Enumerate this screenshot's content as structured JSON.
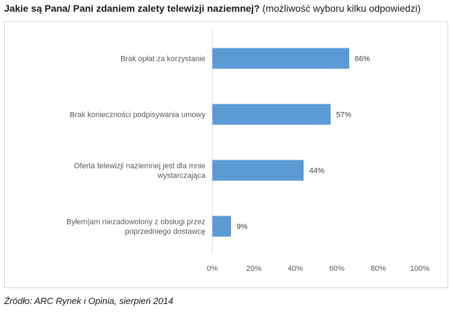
{
  "title": {
    "main": "Jakie są Pana/ Pani zdaniem zalety telewizji naziemnej?",
    "sub": "(możliwość wyboru kilku odpowiedzi)"
  },
  "source": "Źródło: ARC Rynek i Opinia, sierpień 2014",
  "chart_data": {
    "type": "bar",
    "orientation": "horizontal",
    "categories": [
      [
        "Brak opłat za korzystanie"
      ],
      [
        "Brak konieczności podpisywania umowy"
      ],
      [
        "Oferta telewizji naziemnej jest dla mnie",
        "wystarczająca"
      ],
      [
        "Byłem|am niezadowolony z obsługi przez",
        "poprzedniego dostawcę"
      ]
    ],
    "values": [
      66,
      57,
      44,
      9
    ],
    "data_labels": [
      "66%",
      "57%",
      "44%",
      "9%"
    ],
    "xlim": [
      0,
      100
    ],
    "x_ticks": [
      "0%",
      "20%",
      "40%",
      "60%",
      "80%",
      "100%"
    ],
    "x_tick_values": [
      0,
      20,
      40,
      60,
      80,
      100
    ],
    "grid": false,
    "legend": "none",
    "bar_color": "#5b9bd5"
  }
}
